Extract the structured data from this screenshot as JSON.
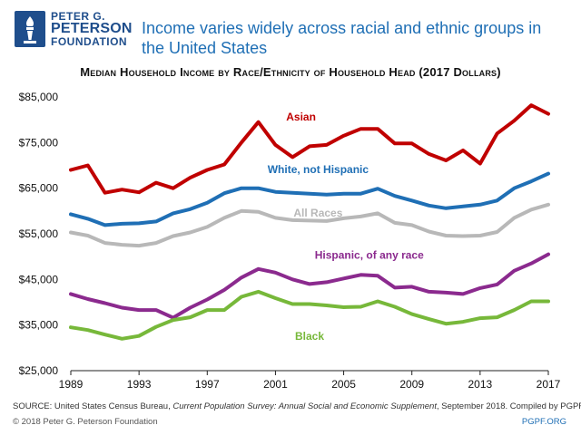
{
  "branding": {
    "logo_line1": "PETER G.",
    "logo_line2": "PETERSON",
    "logo_line3": "FOUNDATION"
  },
  "headline": "Income varies widely across racial and ethnic groups in the United States",
  "footer": {
    "source_prefix": "SOURCE: United States Census Bureau, ",
    "source_title": "Current Population Survey: Annual Social and Economic Supplement",
    "source_suffix": ", September 2018. Compiled by PGPF.",
    "copyright": "© 2018 Peter G. Peterson Foundation",
    "site": "PGPF.ORG"
  },
  "chart_data": {
    "type": "line",
    "title": "Median Household Income by Race/Ethnicity of Household Head (2017 Dollars)",
    "xlabel": "",
    "ylabel": "",
    "xlim": [
      1989,
      2017
    ],
    "ylim": [
      25000,
      85000
    ],
    "grid": false,
    "x_ticks": [
      1989,
      1993,
      1997,
      2001,
      2005,
      2009,
      2013,
      2017
    ],
    "x_tick_labels": [
      "1989",
      "1993",
      "1997",
      "2001",
      "2005",
      "2009",
      "2013",
      "2017"
    ],
    "y_ticks": [
      25000,
      35000,
      45000,
      55000,
      65000,
      75000,
      85000
    ],
    "y_tick_labels": [
      "$25,000",
      "$35,000",
      "$45,000",
      "$55,000",
      "$65,000",
      "$75,000",
      "$85,000"
    ],
    "x": [
      1989,
      1990,
      1991,
      1992,
      1993,
      1994,
      1995,
      1996,
      1997,
      1998,
      1999,
      2000,
      2001,
      2002,
      2003,
      2004,
      2005,
      2006,
      2007,
      2008,
      2009,
      2010,
      2011,
      2012,
      2013,
      2014,
      2015,
      2016,
      2017
    ],
    "series": [
      {
        "name": "Asian",
        "color": "#c00000",
        "label_at": [
          2002.5,
          79800
        ],
        "values": [
          69000,
          70000,
          64000,
          64700,
          64100,
          66200,
          65000,
          67300,
          69000,
          70200,
          75000,
          79500,
          74500,
          71800,
          74200,
          74500,
          76500,
          78000,
          78000,
          74800,
          74800,
          72500,
          71100,
          73300,
          70400,
          77000,
          79800,
          83200,
          81300
        ]
      },
      {
        "name": "White, not Hispanic",
        "color": "#1f6fb5",
        "label_at": [
          2003.5,
          68300
        ],
        "values": [
          59300,
          58300,
          56900,
          57200,
          57300,
          57700,
          59500,
          60400,
          61800,
          63900,
          65000,
          65000,
          64200,
          64000,
          63800,
          63600,
          63800,
          63800,
          64900,
          63300,
          62300,
          61200,
          60600,
          61000,
          61400,
          62300,
          65000,
          66500,
          68200
        ]
      },
      {
        "name": "All Races",
        "color": "#b8b8b8",
        "label_at": [
          2003.5,
          58800
        ],
        "values": [
          55300,
          54600,
          53000,
          52600,
          52400,
          53000,
          54500,
          55300,
          56500,
          58500,
          60000,
          59800,
          58500,
          58000,
          57900,
          57800,
          58400,
          58800,
          59500,
          57400,
          56900,
          55500,
          54600,
          54500,
          54600,
          55400,
          58500,
          60300,
          61400
        ]
      },
      {
        "name": "Hispanic, of any race",
        "color": "#8b2a8e",
        "label_at": [
          2006.5,
          49500
        ],
        "values": [
          41800,
          40700,
          39800,
          38800,
          38300,
          38300,
          36600,
          38800,
          40600,
          42700,
          45400,
          47300,
          46500,
          45000,
          44000,
          44400,
          45200,
          46000,
          45800,
          43200,
          43400,
          42300,
          42100,
          41800,
          43100,
          43900,
          46900,
          48500,
          50500
        ]
      },
      {
        "name": "Black",
        "color": "#77b83a",
        "label_at": [
          2003,
          31800
        ],
        "values": [
          34500,
          33900,
          32900,
          32000,
          32600,
          34600,
          36100,
          36700,
          38300,
          38300,
          41200,
          42300,
          40900,
          39600,
          39600,
          39300,
          38900,
          39000,
          40200,
          39000,
          37400,
          36300,
          35300,
          35700,
          36500,
          36700,
          38300,
          40200,
          40200
        ]
      }
    ]
  }
}
